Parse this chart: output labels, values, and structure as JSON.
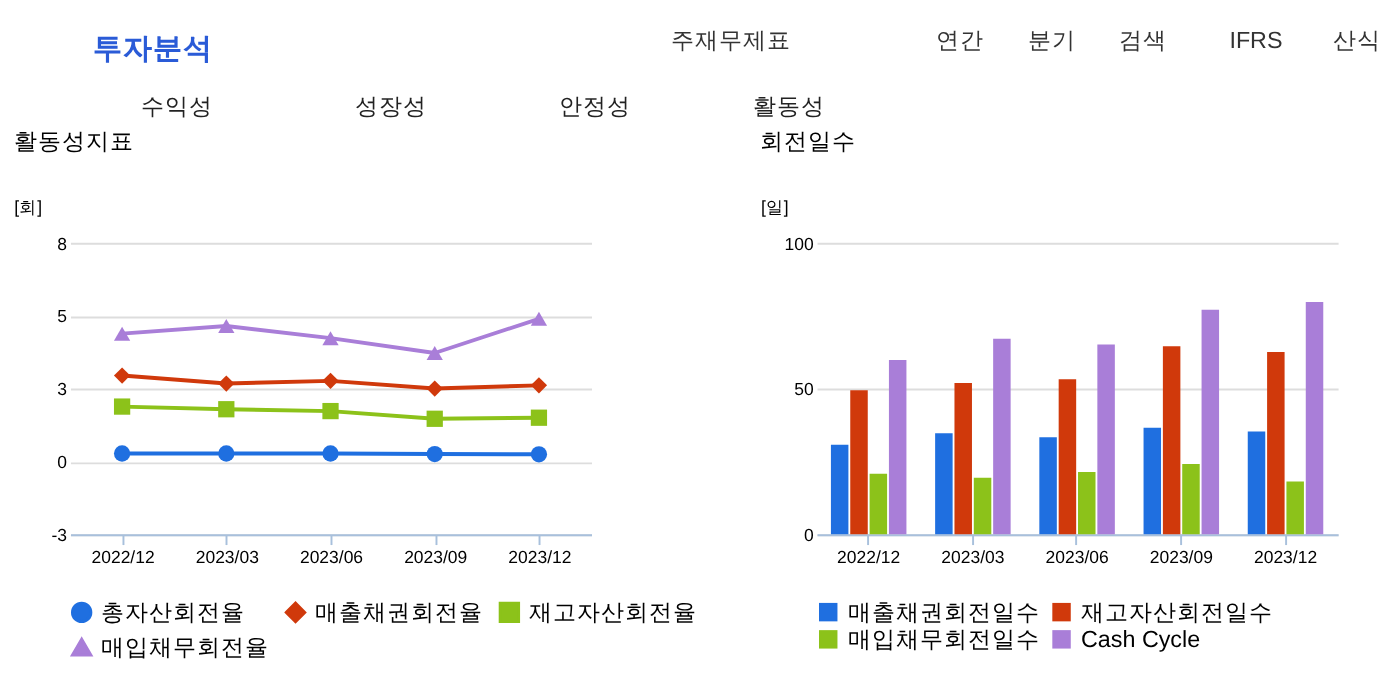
{
  "chart_data": [
    {
      "type": "other",
      "title": "투자분석",
      "annotations": [
        "주재무제표",
        "연간",
        "분기",
        "검색",
        "IFRS",
        "산식",
        "수익성",
        "성장성",
        "안정성",
        "활동성"
      ]
    },
    {
      "type": "line",
      "title": "활동성지표",
      "ylabel": "[회]",
      "categories": [
        "2022/12",
        "2023/03",
        "2023/06",
        "2023/09",
        "2023/12"
      ],
      "ylim": [
        -2.75,
        8.25
      ],
      "yticks": [
        {
          "value": -2.75,
          "label": "-3"
        },
        0,
        {
          "value": 2.75,
          "label": "3"
        },
        {
          "value": 5.5,
          "label": "5"
        },
        {
          "value": 8.25,
          "label": "8"
        }
      ],
      "grid": "y",
      "legend": "bottom",
      "series": [
        {
          "name": "총자산회전율",
          "color": "#1f6fe0",
          "marker": "circle",
          "values": [
            0.3,
            0.3,
            0.3,
            0.28,
            0.27
          ]
        },
        {
          "name": "매출채권회전율",
          "color": "#d0390b",
          "marker": "diamond",
          "values": [
            3.24,
            2.94,
            3.04,
            2.75,
            2.87
          ]
        },
        {
          "name": "재고자산회전율",
          "color": "#8cc21a",
          "marker": "square",
          "values": [
            2.07,
            1.97,
            1.9,
            1.61,
            1.65
          ]
        },
        {
          "name": "매입채무회전율",
          "color": "#a97ed8",
          "marker": "triangle",
          "values": [
            4.82,
            5.11,
            4.65,
            4.09,
            5.38
          ]
        }
      ]
    },
    {
      "type": "bar",
      "title": "회전일수",
      "ylabel": "[일]",
      "categories": [
        "2022/12",
        "2023/03",
        "2023/06",
        "2023/09",
        "2023/12"
      ],
      "ylim": [
        0,
        100
      ],
      "yticks": [
        0,
        50,
        100
      ],
      "grid": "y",
      "legend": "bottom",
      "series": [
        {
          "name": "매출채권회전일수",
          "color": "#1f6fe0",
          "values": [
            30.7,
            34.7,
            33.3,
            36.6,
            35.3
          ]
        },
        {
          "name": "재고자산회전일수",
          "color": "#d0390b",
          "values": [
            49.4,
            51.9,
            53.2,
            64.5,
            62.5
          ]
        },
        {
          "name": "매입채무회전일수",
          "color": "#8cc21a",
          "values": [
            20.8,
            19.4,
            21.4,
            24.1,
            18.1
          ]
        },
        {
          "name": "Cash Cycle",
          "color": "#a97ed8",
          "values": [
            59.8,
            67.1,
            65.1,
            77.0,
            79.7
          ]
        }
      ]
    }
  ]
}
